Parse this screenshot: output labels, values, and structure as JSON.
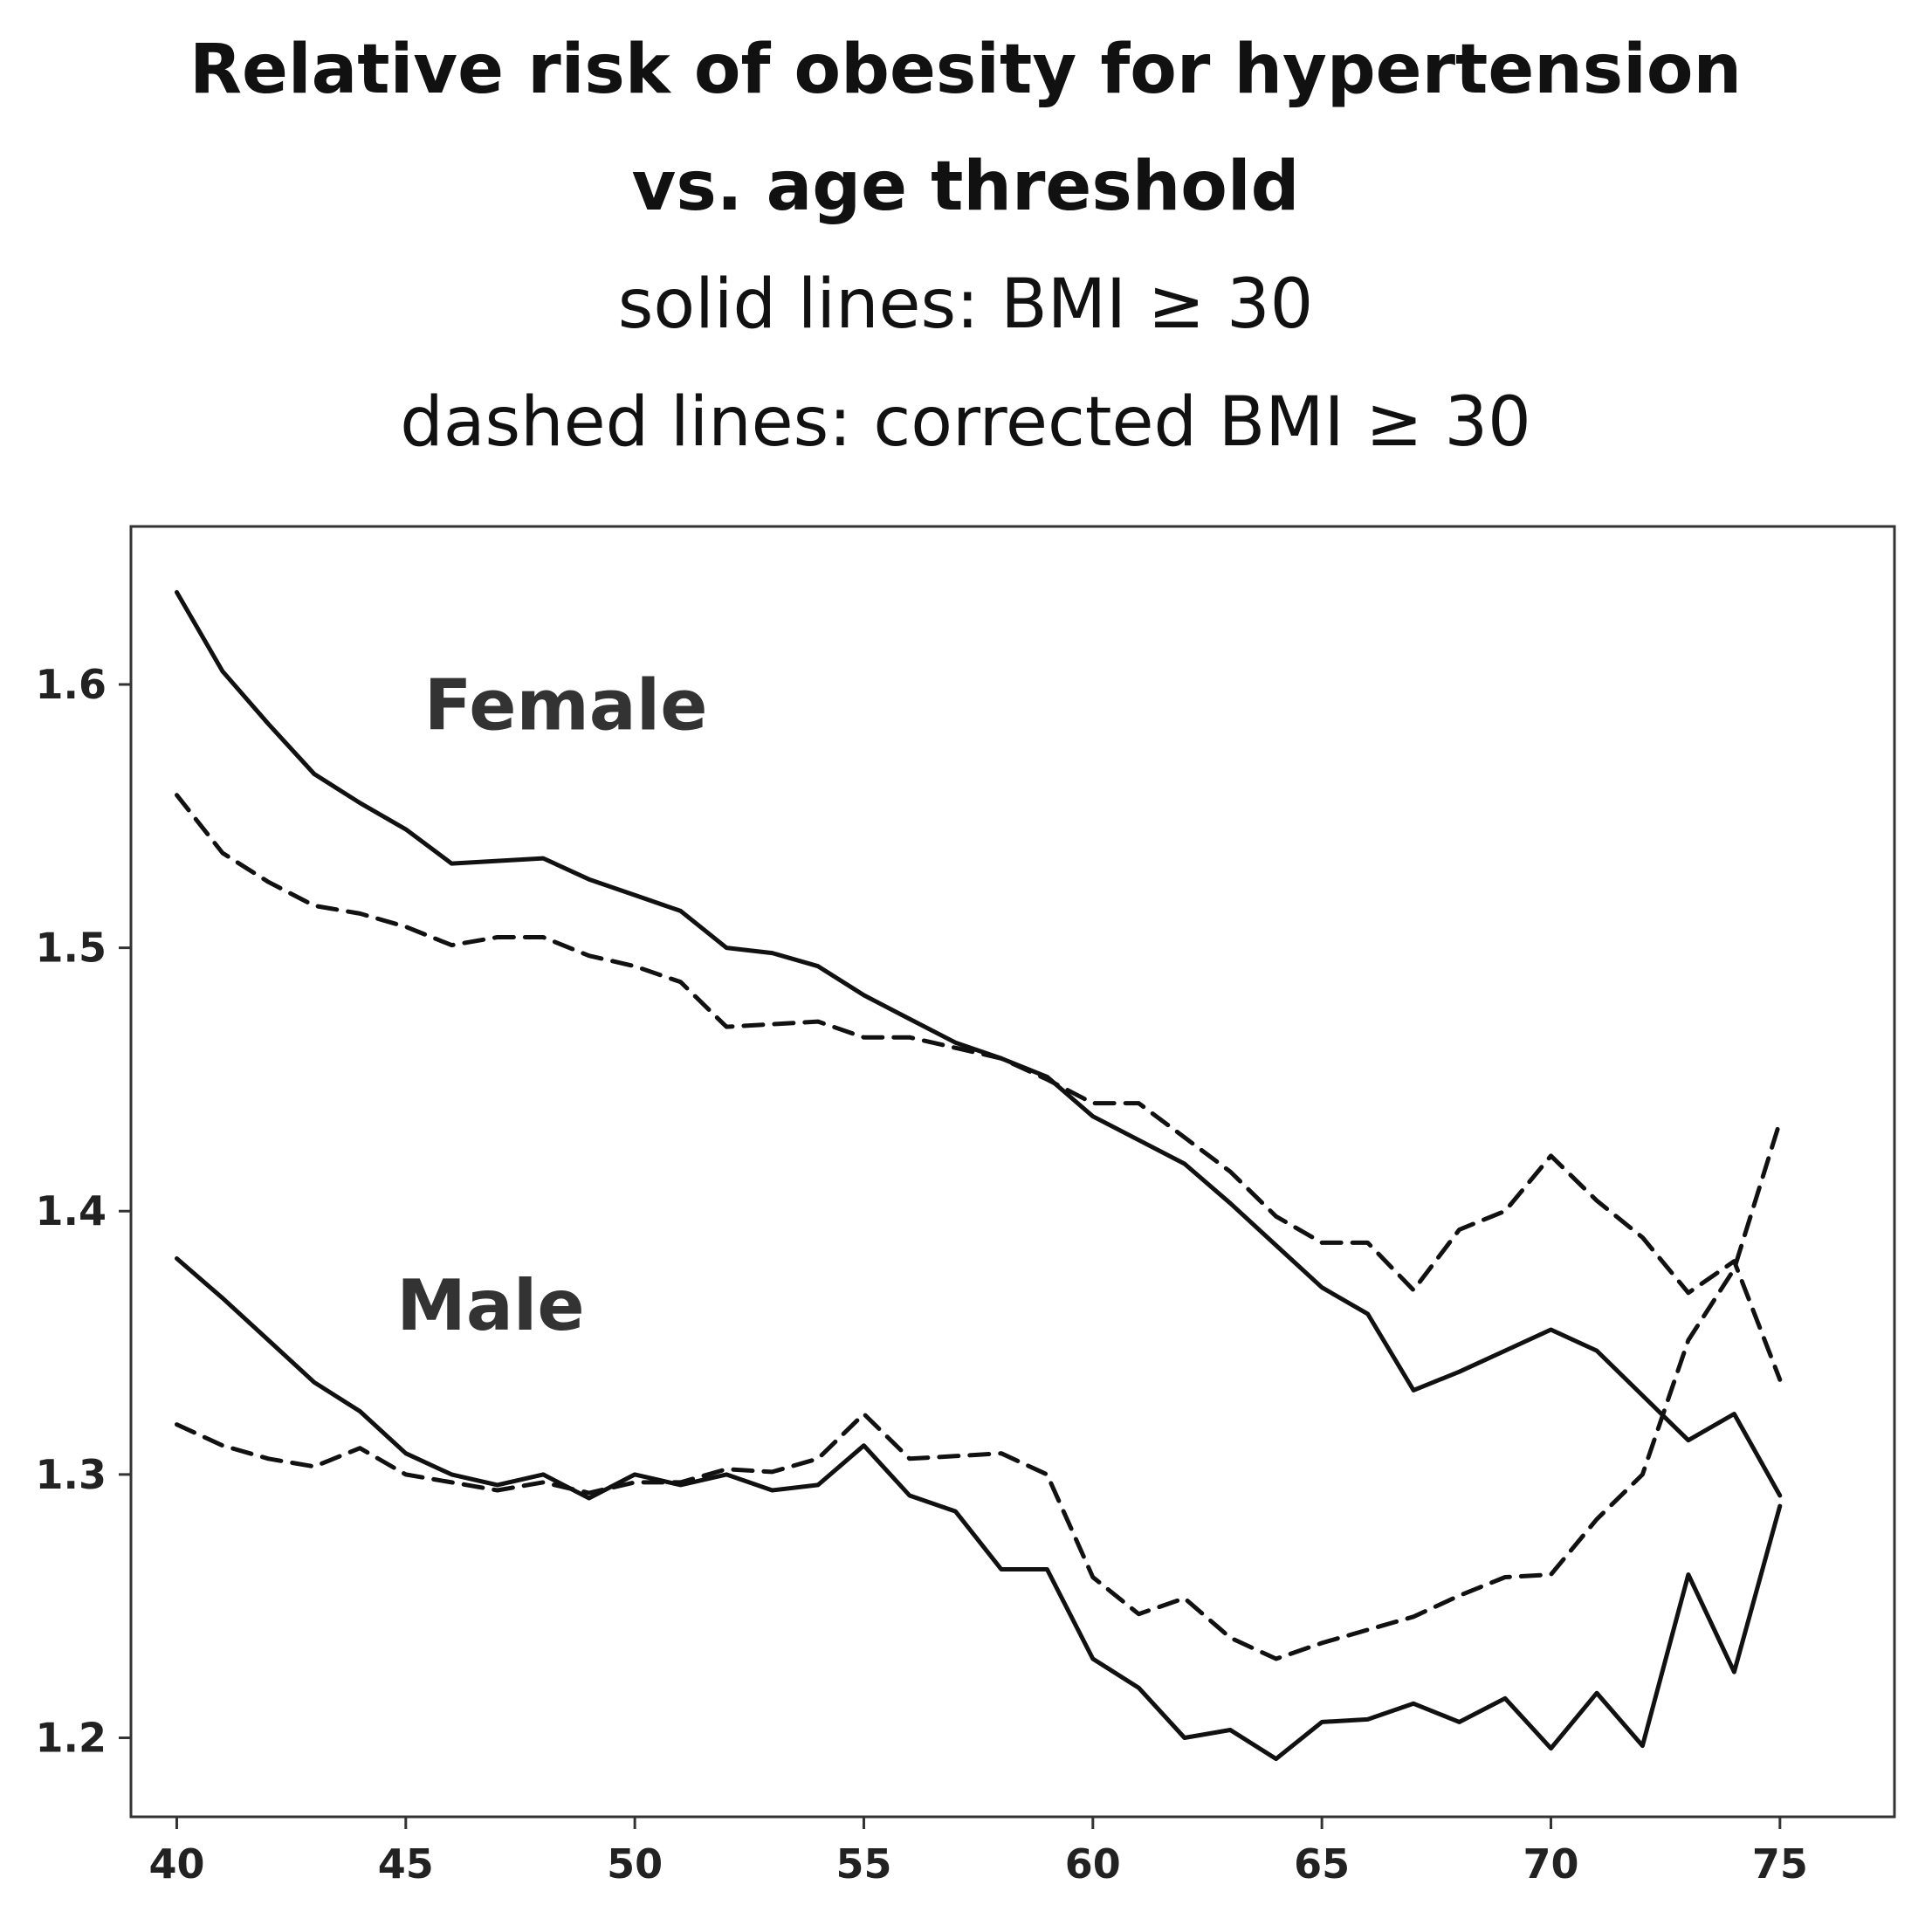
{
  "chart_data": {
    "type": "line",
    "title": "Relative risk of obesity for hypertension",
    "title_line2": "vs. age threshold",
    "subtitle_line1": "solid lines: BMI ≥ 30",
    "subtitle_line2": "dashed lines: corrected BMI ≥ 30",
    "xlabel": "",
    "ylabel": "",
    "xlim": [
      39,
      77.5
    ],
    "ylim": [
      1.17,
      1.66
    ],
    "xticks": [
      40,
      45,
      50,
      55,
      60,
      65,
      70,
      75
    ],
    "yticks": [
      1.2,
      1.3,
      1.4,
      1.5,
      1.6
    ],
    "x": [
      40,
      41,
      42,
      43,
      44,
      45,
      46,
      47,
      48,
      49,
      50,
      51,
      52,
      53,
      54,
      55,
      56,
      57,
      58,
      59,
      60,
      61,
      62,
      63,
      64,
      65,
      66,
      67,
      68,
      69,
      70,
      71,
      72,
      73,
      74,
      75
    ],
    "annotations": [
      {
        "text": "Female",
        "x": 45.4,
        "y": 1.583
      },
      {
        "text": "Male",
        "x": 44.8,
        "y": 1.355
      }
    ],
    "series": [
      {
        "name": "Female BMI ≥ 30",
        "style": "solid",
        "color": "#111111",
        "values": [
          1.635,
          1.605,
          1.585,
          1.566,
          1.555,
          1.545,
          1.532,
          1.533,
          1.534,
          1.526,
          1.52,
          1.514,
          1.5,
          1.498,
          1.493,
          1.482,
          1.473,
          1.464,
          1.458,
          1.451,
          1.436,
          1.427,
          1.418,
          1.403,
          1.387,
          1.371,
          1.361,
          1.332,
          1.339,
          1.347,
          1.355,
          1.347,
          1.33,
          1.313,
          1.323,
          1.292
        ]
      },
      {
        "name": "Female corrected BMI ≥ 30",
        "style": "dashed",
        "color": "#111111",
        "values": [
          1.558,
          1.536,
          1.525,
          1.516,
          1.513,
          1.508,
          1.501,
          1.504,
          1.504,
          1.497,
          1.493,
          1.487,
          1.47,
          1.471,
          1.472,
          1.466,
          1.466,
          1.462,
          1.458,
          1.45,
          1.441,
          1.441,
          1.428,
          1.415,
          1.398,
          1.388,
          1.388,
          1.37,
          1.393,
          1.4,
          1.421,
          1.404,
          1.39,
          1.369,
          1.381,
          1.336
        ]
      },
      {
        "name": "Male BMI ≥ 30",
        "style": "solid",
        "color": "#111111",
        "values": [
          1.382,
          1.367,
          1.351,
          1.335,
          1.324,
          1.308,
          1.3,
          1.296,
          1.3,
          1.291,
          1.3,
          1.296,
          1.3,
          1.294,
          1.296,
          1.311,
          1.292,
          1.286,
          1.264,
          1.264,
          1.23,
          1.219,
          1.2,
          1.203,
          1.192,
          1.206,
          1.207,
          1.213,
          1.206,
          1.215,
          1.196,
          1.217,
          1.197,
          1.262,
          1.225,
          1.288
        ]
      },
      {
        "name": "Male corrected BMI ≥ 30",
        "style": "dashed",
        "color": "#111111",
        "values": [
          1.319,
          1.311,
          1.306,
          1.303,
          1.31,
          1.3,
          1.297,
          1.294,
          1.297,
          1.293,
          1.297,
          1.297,
          1.302,
          1.301,
          1.306,
          1.323,
          1.306,
          1.307,
          1.308,
          1.3,
          1.261,
          1.247,
          1.253,
          1.238,
          1.23,
          1.236,
          1.241,
          1.246,
          1.254,
          1.261,
          1.262,
          1.283,
          1.3,
          1.351,
          1.378,
          1.434
        ]
      }
    ]
  }
}
